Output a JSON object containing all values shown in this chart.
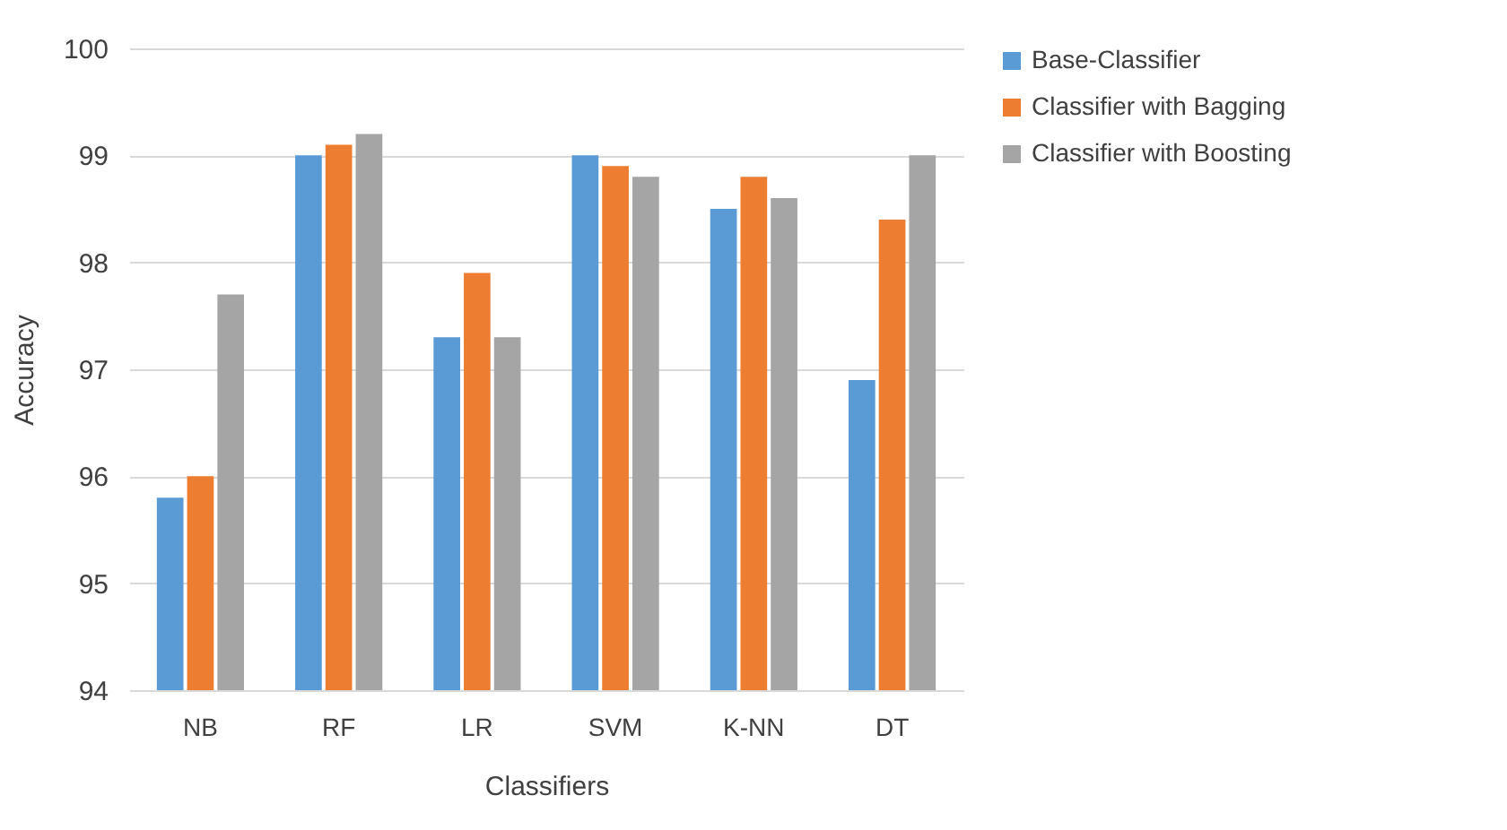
{
  "chart_data": {
    "type": "bar",
    "xlabel": "Classifiers",
    "ylabel": "Accuracy",
    "categories": [
      "NB",
      "RF",
      "LR",
      "SVM",
      "K-NN",
      "DT"
    ],
    "series": [
      {
        "name": "Base-Classifier",
        "color": "#5b9bd5",
        "values": [
          95.8,
          99.0,
          97.3,
          99.0,
          98.5,
          96.9
        ]
      },
      {
        "name": "Classifier with Bagging",
        "color": "#ed7d31",
        "values": [
          96.0,
          99.1,
          97.9,
          98.9,
          98.8,
          98.4
        ]
      },
      {
        "name": "Classifier with Boosting",
        "color": "#a5a5a5",
        "values": [
          97.7,
          99.2,
          97.3,
          98.8,
          98.6,
          99.0
        ]
      }
    ],
    "ylim": [
      94,
      100
    ],
    "yticks": [
      94,
      95,
      96,
      97,
      98,
      99,
      100
    ],
    "grid": "y",
    "legend": "right"
  }
}
